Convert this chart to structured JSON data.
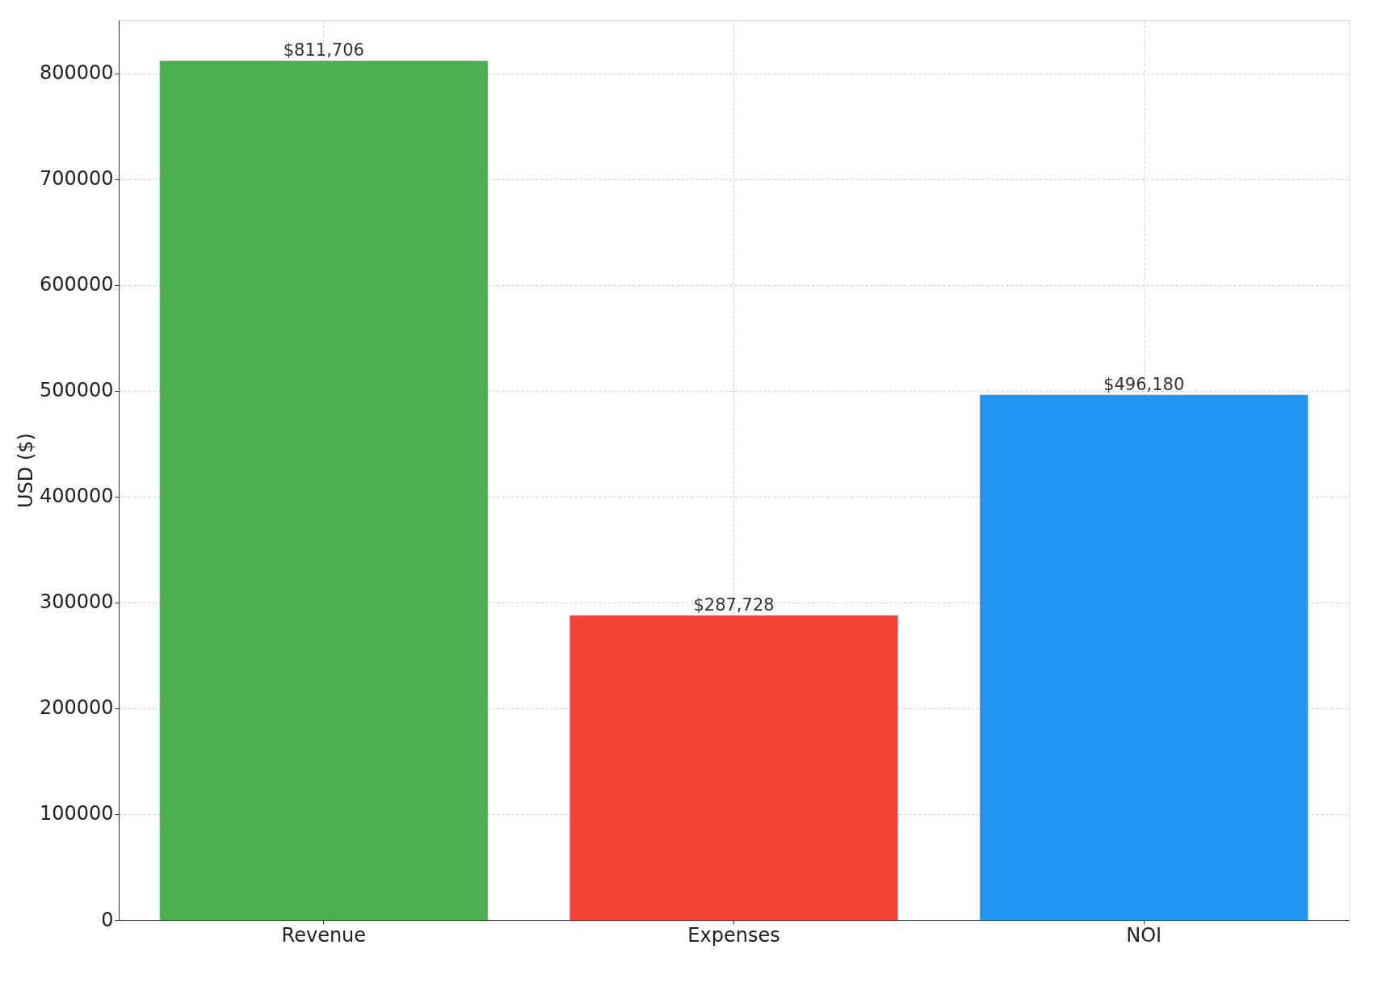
{
  "chart_data": {
    "type": "bar",
    "ylabel": "USD ($)",
    "categories": [
      "Revenue",
      "Expenses",
      "NOI"
    ],
    "values": [
      811706,
      287728,
      496180
    ],
    "colors": [
      "#4caf50",
      "#f44336",
      "#2196f3"
    ],
    "value_labels": [
      "$811,706",
      "$287,728",
      "$496,180"
    ],
    "ylim": [
      0,
      850000
    ],
    "yticks": [
      0,
      100000,
      200000,
      300000,
      400000,
      500000,
      600000,
      700000,
      800000
    ],
    "grid": true
  }
}
